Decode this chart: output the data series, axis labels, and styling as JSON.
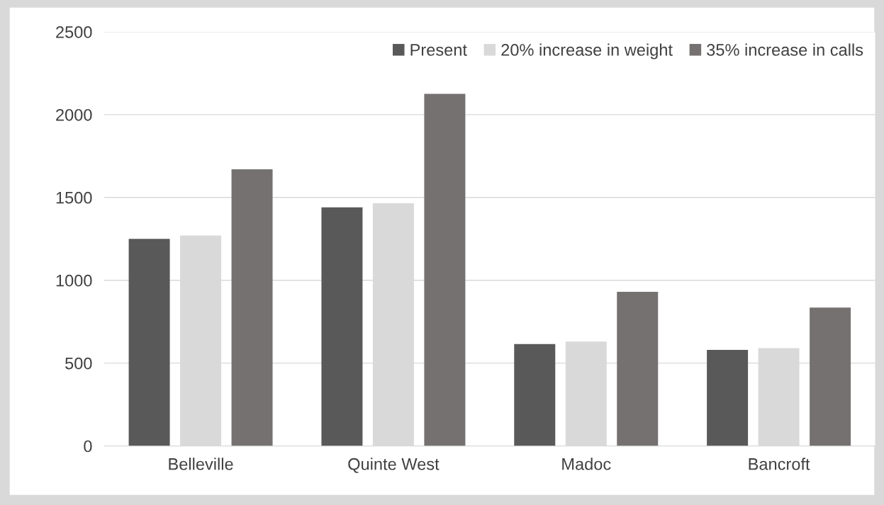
{
  "chart_data": {
    "type": "bar",
    "categories": [
      "Belleville",
      "Quinte West",
      "Madoc",
      "Bancroft"
    ],
    "series": [
      {
        "name": "Present",
        "color": "#595959",
        "values": [
          1250,
          1440,
          615,
          580
        ]
      },
      {
        "name": "20% increase in weight",
        "color": "#d9d9d9",
        "values": [
          1270,
          1465,
          630,
          590
        ]
      },
      {
        "name": "35% increase in calls",
        "color": "#767171",
        "values": [
          1670,
          2125,
          930,
          835
        ]
      }
    ],
    "ylim": [
      0,
      2500
    ],
    "yticks": [
      0,
      500,
      1000,
      1500,
      2000,
      2500
    ],
    "grid": "y",
    "legend": "top right"
  }
}
